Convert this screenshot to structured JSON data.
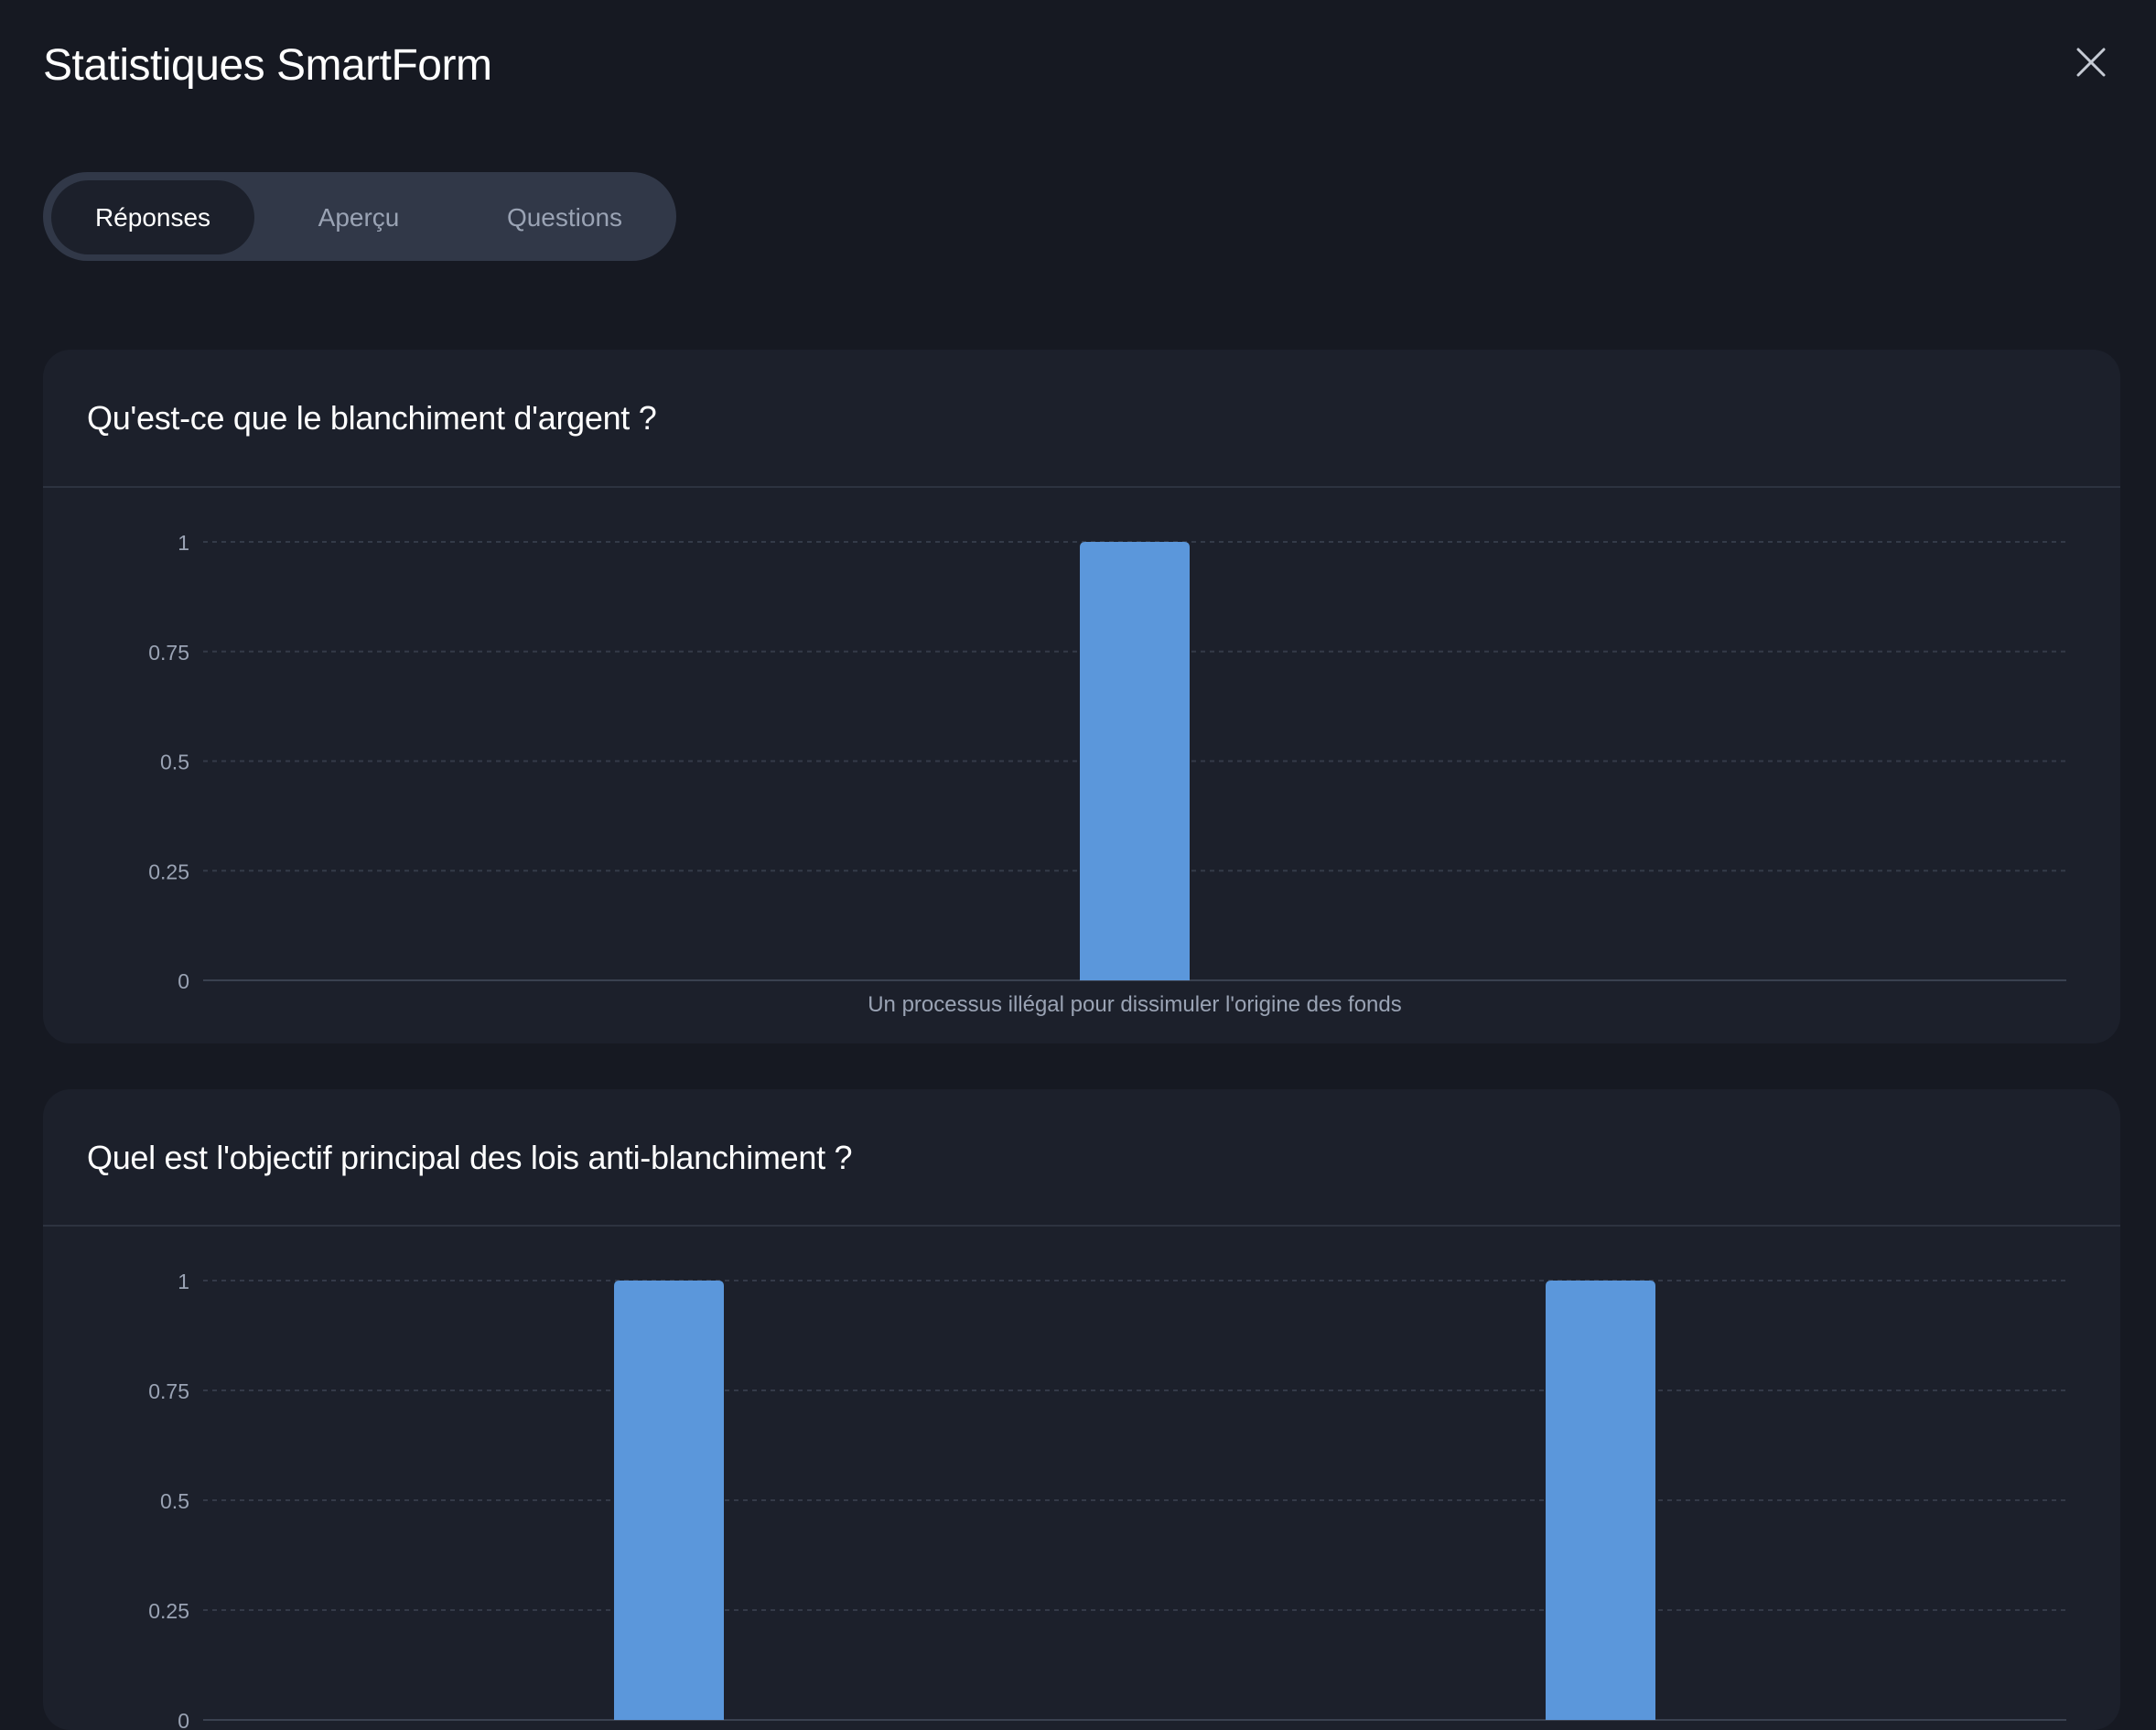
{
  "header": {
    "title": "Statistiques SmartForm",
    "close_icon": "close-icon"
  },
  "tabs": [
    {
      "label": "Réponses",
      "active": true
    },
    {
      "label": "Aperçu",
      "active": false
    },
    {
      "label": "Questions",
      "active": false
    }
  ],
  "colors": {
    "bar": "#5b97db",
    "card": "#1c202b",
    "background": "#161922",
    "accent_tab": "#313848"
  },
  "chart_data": [
    {
      "type": "bar",
      "title": "Qu'est-ce que le blanchiment d'argent ?",
      "categories": [
        "Un processus illégal pour dissimuler l'origine des fonds"
      ],
      "values": [
        1
      ],
      "ylim": [
        0,
        1
      ],
      "yticks": [
        "0",
        "0.25",
        "0.5",
        "0.75",
        "1"
      ],
      "grid": true
    },
    {
      "type": "bar",
      "title": "Quel est l'objectif principal des lois anti-blanchiment ?",
      "categories": [
        "",
        ""
      ],
      "values": [
        1,
        1
      ],
      "ylim": [
        0,
        1
      ],
      "yticks": [
        "0",
        "0.25",
        "0.5",
        "0.75",
        "1"
      ],
      "grid": true
    }
  ]
}
